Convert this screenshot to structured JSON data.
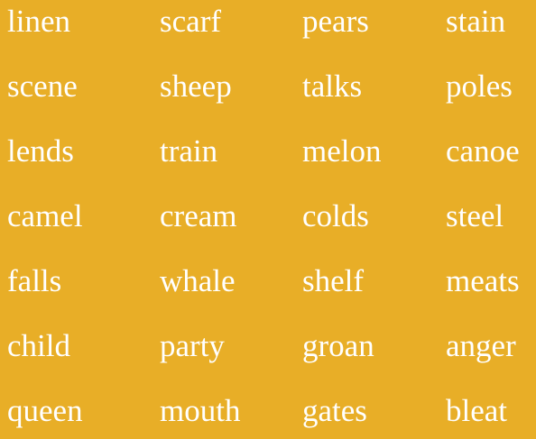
{
  "colors": {
    "background": "#E8AE27",
    "text": "#FFFFFF"
  },
  "rows": [
    [
      "linen",
      "scarf",
      "pears",
      "stain"
    ],
    [
      "scene",
      "sheep",
      "talks",
      "poles"
    ],
    [
      "lends",
      "train",
      "melon",
      "canoe"
    ],
    [
      "camel",
      "cream",
      "colds",
      "steel"
    ],
    [
      "falls",
      "whale",
      "shelf",
      "meats"
    ],
    [
      "child",
      "party",
      "groan",
      "anger"
    ],
    [
      "queen",
      "mouth",
      "gates",
      "bleat"
    ]
  ]
}
